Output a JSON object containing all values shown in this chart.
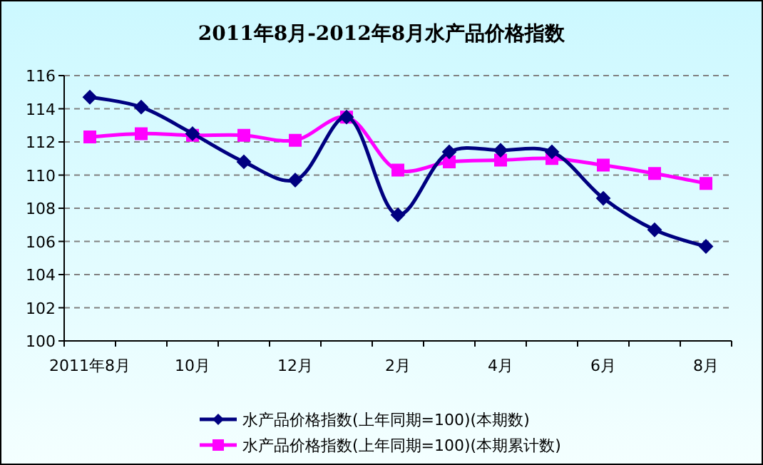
{
  "chart_data": {
    "type": "line",
    "title": "2011年8月-2012年8月水产品价格指数",
    "categories": [
      "2011年8月",
      null,
      "10月",
      null,
      "12月",
      null,
      "2月",
      null,
      "4月",
      null,
      "6月",
      null,
      "8月"
    ],
    "series": [
      {
        "name": "水产品价格指数(上年同期=100)(本期数)",
        "color": "#000080",
        "marker": "diamond",
        "values": [
          114.7,
          114.1,
          112.5,
          110.8,
          109.7,
          113.5,
          107.6,
          111.4,
          111.5,
          111.4,
          108.6,
          106.7,
          105.7
        ]
      },
      {
        "name": "水产品价格指数(上年同期=100)(本期累计数)",
        "color": "#ff00ff",
        "marker": "square",
        "values": [
          112.3,
          112.5,
          112.4,
          112.4,
          112.1,
          113.5,
          110.3,
          110.8,
          110.9,
          111.0,
          110.6,
          110.1,
          109.5
        ]
      }
    ],
    "ylim": [
      100,
      116
    ],
    "yticks": [
      100,
      102,
      104,
      106,
      108,
      110,
      112,
      114,
      116
    ],
    "grid": "y",
    "legend": "bottom"
  }
}
